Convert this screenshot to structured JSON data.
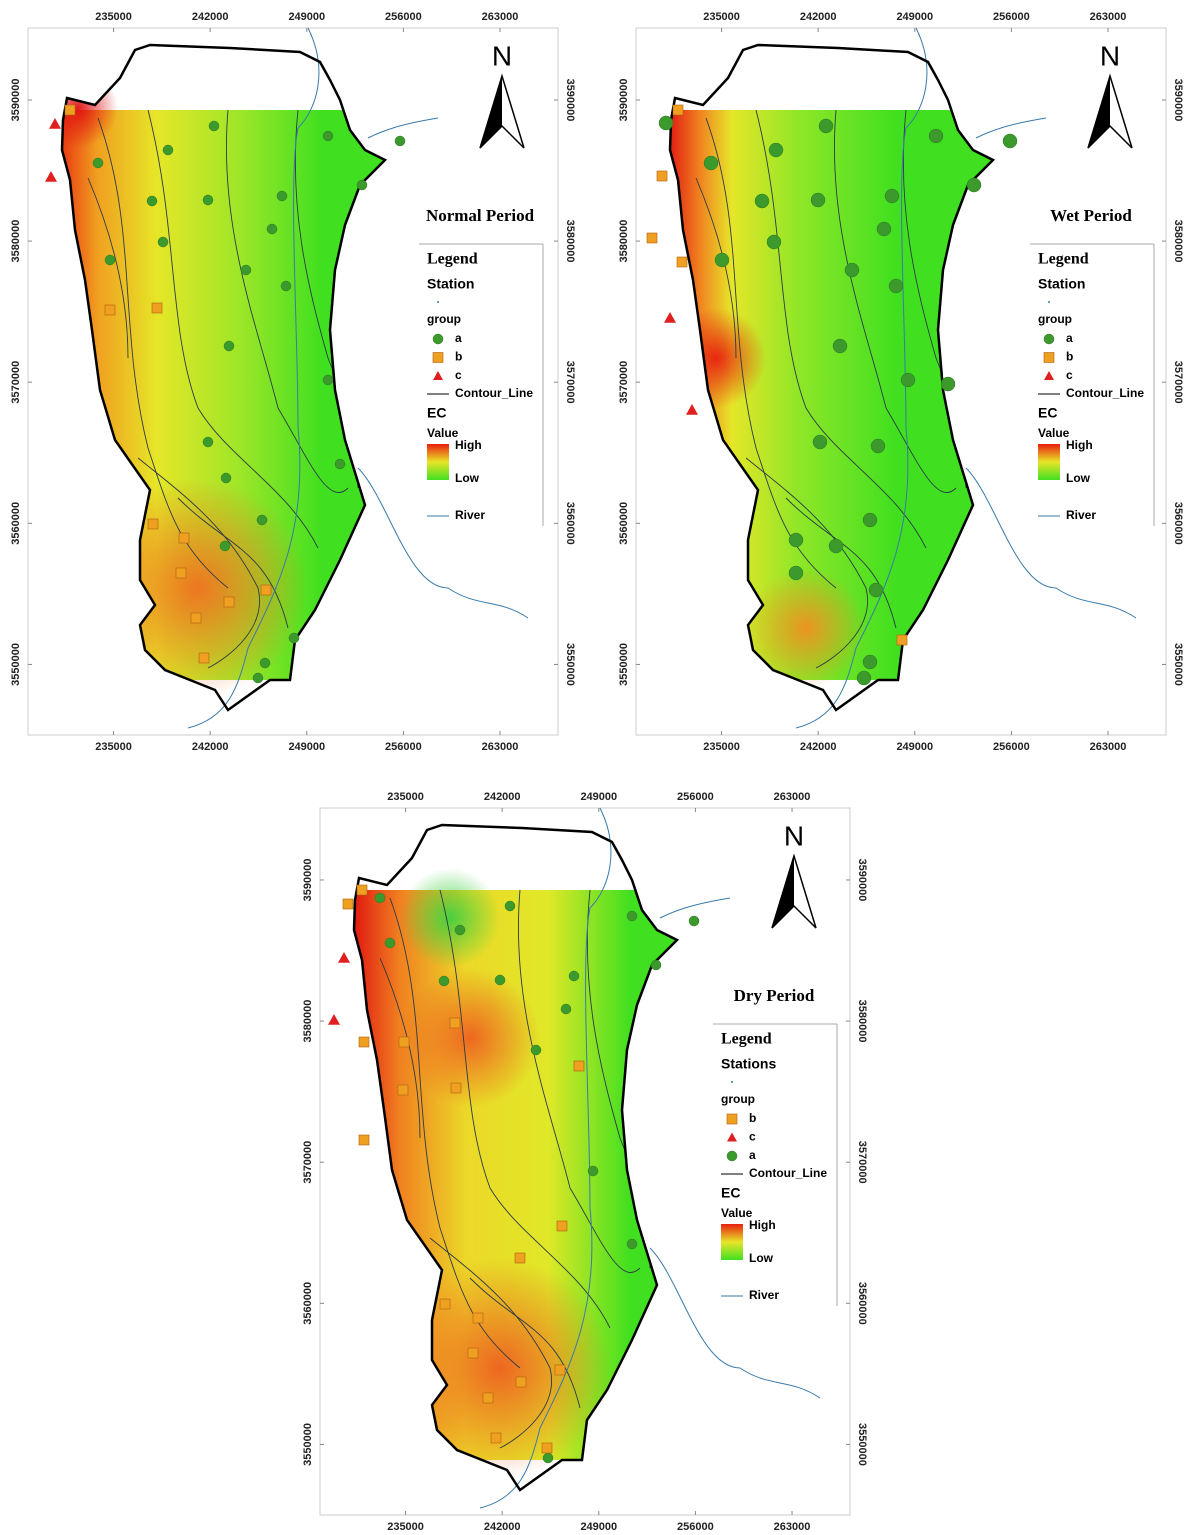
{
  "maps": [
    {
      "title": "Normal Period",
      "north": "N",
      "xlim": [
        228800,
        267200
      ],
      "ylim": [
        3545000,
        3595100
      ],
      "xticks": [
        235000,
        242000,
        249000,
        256000,
        263000
      ],
      "yticks": [
        3550000,
        3560000,
        3570000,
        3580000,
        3590000
      ],
      "legend": {
        "heading": "Legend",
        "station": "Station",
        "group": "group",
        "items": [
          {
            "label": "a",
            "marker": "circle",
            "color": "#3c9a2c"
          },
          {
            "label": "b",
            "marker": "square",
            "color": "#f0a020"
          },
          {
            "label": "c",
            "marker": "triangle",
            "color": "#e02020"
          }
        ],
        "contour": "Contour_Line",
        "ec": "EC",
        "value": "Value",
        "high": "High",
        "low": "Low",
        "river": "River"
      }
    },
    {
      "title": "Wet Period",
      "north": "N",
      "xlim": [
        228800,
        267200
      ],
      "ylim": [
        3545000,
        3595100
      ],
      "xticks": [
        235000,
        242000,
        249000,
        256000,
        263000
      ],
      "yticks": [
        3550000,
        3560000,
        3570000,
        3580000,
        3590000
      ],
      "legend": {
        "heading": "Legend",
        "station": "Station",
        "group": "group",
        "items": [
          {
            "label": "a",
            "marker": "circle",
            "color": "#3c9a2c"
          },
          {
            "label": "b",
            "marker": "square",
            "color": "#f0a020"
          },
          {
            "label": "c",
            "marker": "triangle",
            "color": "#e02020"
          }
        ],
        "contour": "Contour_Line",
        "ec": "EC",
        "value": "Value",
        "high": "High",
        "low": "Low",
        "river": "River"
      }
    },
    {
      "title": "Dry Period",
      "north": "N",
      "xlim": [
        228800,
        267200
      ],
      "ylim": [
        3545000,
        3595100
      ],
      "xticks": [
        235000,
        242000,
        249000,
        256000,
        263000
      ],
      "yticks": [
        3550000,
        3560000,
        3570000,
        3580000,
        3590000
      ],
      "legend": {
        "heading": "Legend",
        "station": "Stations",
        "group": "group",
        "items": [
          {
            "label": "b",
            "marker": "square",
            "color": "#f0a020"
          },
          {
            "label": "c",
            "marker": "triangle",
            "color": "#e02020"
          },
          {
            "label": "a",
            "marker": "circle",
            "color": "#3c9a2c"
          }
        ],
        "contour": "Contour_Line",
        "ec": "EC",
        "value": "Value",
        "high": "High",
        "low": "Low",
        "river": "River"
      }
    }
  ]
}
